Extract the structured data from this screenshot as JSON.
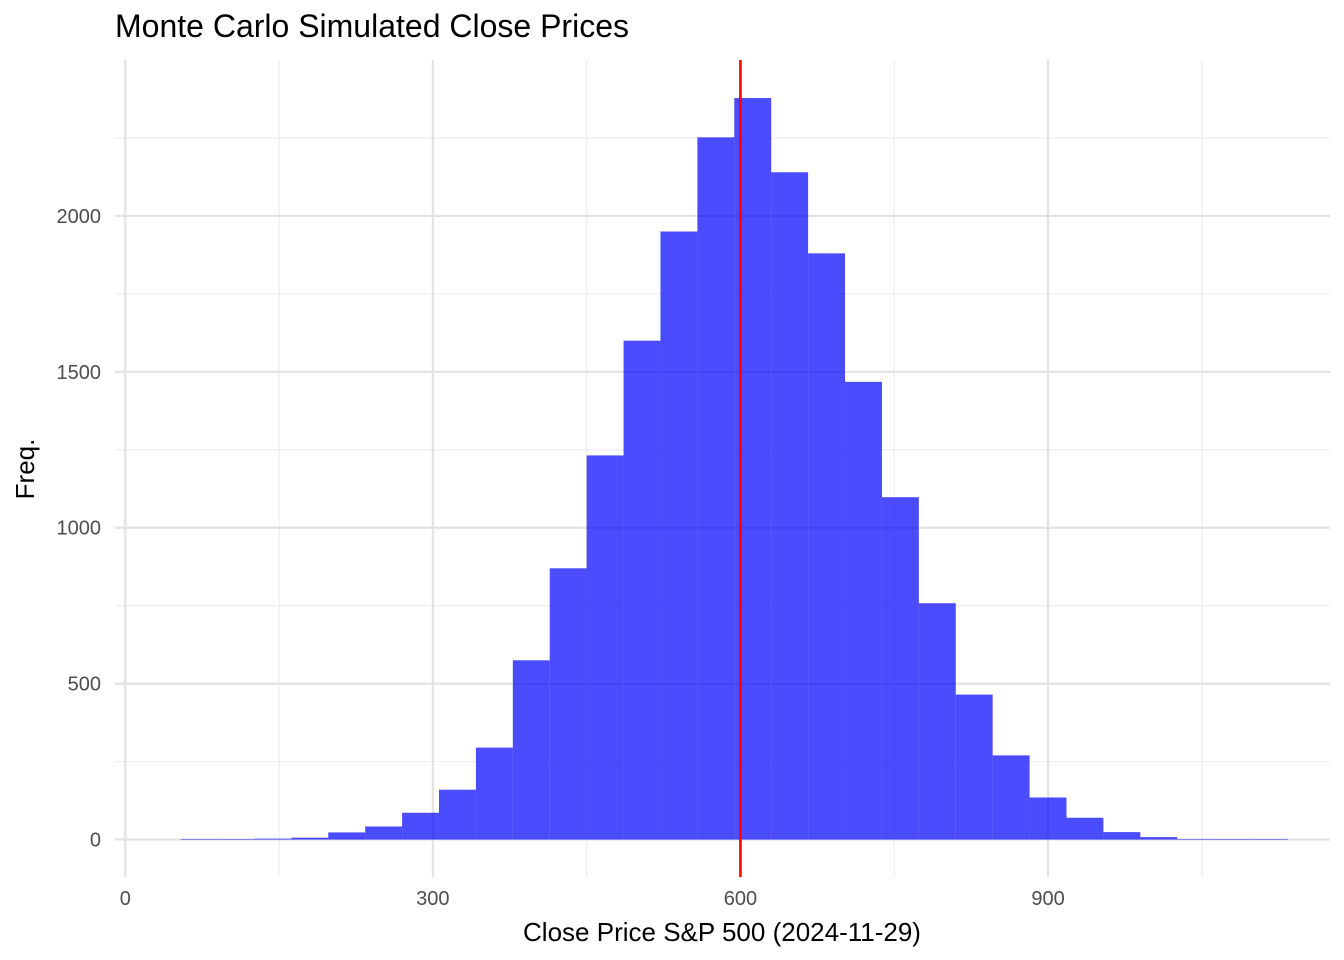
{
  "chart_data": {
    "type": "bar",
    "title": "Monte Carlo Simulated Close Prices",
    "xlabel": "Close Price S&P 500 (2024-11-29)",
    "ylabel": "Freq.",
    "xlim": [
      -10,
      1175
    ],
    "ylim": [
      -120,
      2500
    ],
    "x_ticks": [
      0,
      300,
      600,
      900
    ],
    "x_tick_labels": [
      "0",
      "300",
      "600",
      "900"
    ],
    "x_minor_ticks": [
      150,
      450,
      750,
      1050
    ],
    "y_ticks": [
      0,
      500,
      1000,
      1500,
      2000
    ],
    "y_tick_labels": [
      "0",
      "500",
      "1000",
      "1500",
      "2000"
    ],
    "y_minor_ticks": [
      250,
      750,
      1250,
      1750,
      2250
    ],
    "grid": true,
    "bin_width": 36,
    "bin_starts": [
      54,
      90,
      126,
      162,
      198,
      234,
      270,
      306,
      342,
      378,
      414,
      450,
      486,
      522,
      558,
      594,
      630,
      666,
      702,
      738,
      774,
      810,
      846,
      882,
      918,
      954,
      990,
      1026,
      1062,
      1098
    ],
    "values": [
      2,
      1,
      3,
      6,
      23,
      42,
      86,
      160,
      295,
      575,
      870,
      1232,
      1600,
      1950,
      2252,
      2378,
      2140,
      1880,
      1468,
      1098,
      758,
      465,
      270,
      135,
      70,
      24,
      8,
      2,
      1,
      1
    ],
    "bar_color": "#0000FF",
    "bar_opacity": 0.7,
    "reference_line": {
      "x": 600,
      "color": "#FF0000"
    }
  }
}
